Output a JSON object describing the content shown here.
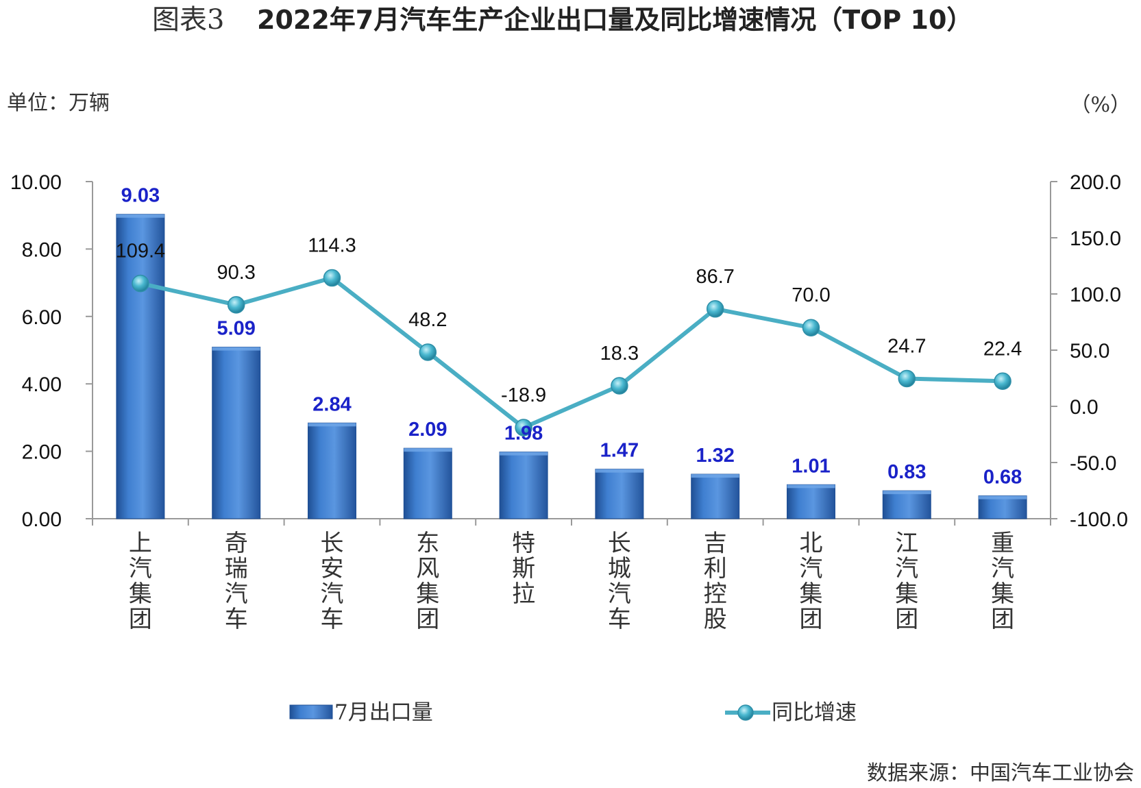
{
  "figure_prefix": "图表3",
  "chart_data": {
    "type": "bar",
    "title": "2022年7月汽车生产企业出口量及同比增速情况（TOP 10）",
    "left_unit": "单位：万辆",
    "right_unit": "（%）",
    "categories": [
      "上汽集团",
      "奇瑞汽车",
      "长安汽车",
      "东风集团",
      "特斯拉",
      "长城汽车",
      "吉利控股",
      "北汽集团",
      "江汽集团",
      "重汽集团"
    ],
    "series": [
      {
        "name": "7月出口量",
        "type": "bar",
        "axis": "left",
        "values": [
          9.03,
          5.09,
          2.84,
          2.09,
          1.98,
          1.47,
          1.32,
          1.01,
          0.83,
          0.68
        ],
        "labels": [
          "9.03",
          "5.09",
          "2.84",
          "2.09",
          "1.98",
          "1.47",
          "1.32",
          "1.01",
          "0.83",
          "0.68"
        ]
      },
      {
        "name": "同比增速",
        "type": "line",
        "axis": "right",
        "values": [
          109.4,
          90.3,
          114.3,
          48.2,
          -18.9,
          18.3,
          86.7,
          70.0,
          24.7,
          22.4
        ],
        "labels": [
          "109.4",
          "90.3",
          "114.3",
          "48.2",
          "-18.9",
          "18.3",
          "86.7",
          "70.0",
          "24.7",
          "22.4"
        ]
      }
    ],
    "left_axis": {
      "ylim": [
        0,
        10
      ],
      "ticks": [
        "0.00",
        "2.00",
        "4.00",
        "6.00",
        "8.00",
        "10.00"
      ]
    },
    "right_axis": {
      "ylim": [
        -100,
        200
      ],
      "ticks": [
        "-100.0",
        "-50.0",
        "0.0",
        "50.0",
        "100.0",
        "150.0",
        "200.0"
      ]
    },
    "grid": false,
    "legend_position": "bottom",
    "colors": {
      "bar": "#3a78c8",
      "bar_dark": "#1f4f94",
      "line": "#4aaec4",
      "marker": "#45b3cc",
      "bar_label": "#1a22c8",
      "axis": "#999999"
    }
  },
  "source": "数据来源：中国汽车工业协会"
}
